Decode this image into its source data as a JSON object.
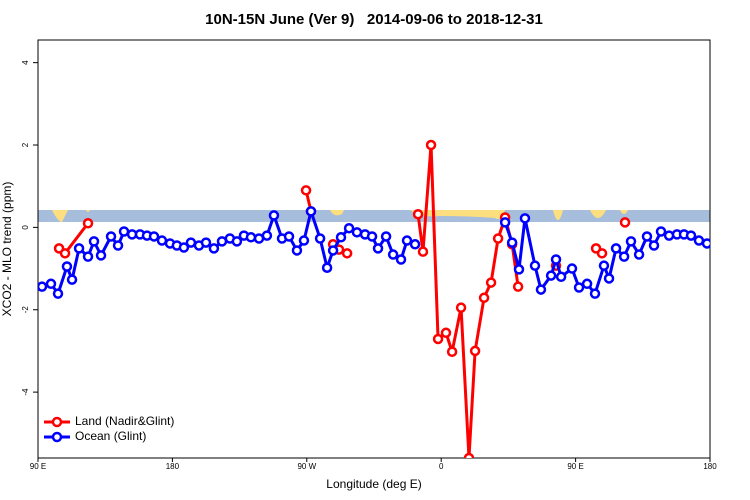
{
  "chart_data": {
    "type": "line",
    "title": "10N-15N June (Ver 9)   2014-09-06 to 2018-12-31",
    "x_label": "Longitude (deg E)",
    "y_label": "XCO2 - MLO trend (ppm)",
    "xlim": [
      90,
      540
    ],
    "xticks": [
      {
        "value": 90,
        "label": "90 E"
      },
      180,
      {
        "value": 270,
        "label": "90 W"
      },
      {
        "value": 360,
        "label": "0"
      },
      {
        "value": 450,
        "label": "90 E"
      },
      {
        "value": 540,
        "label": "180"
      }
    ],
    "ylim": [
      -5.6,
      4.55
    ],
    "yticks": [
      -4,
      -2,
      0,
      2,
      4
    ],
    "legend": "bottom-left",
    "series": [
      {
        "name": "Land (Nadir&Glint)",
        "color": "#ff0000",
        "x": [
          104.1,
          108.1,
          123.5,
          null,
          269.5,
          272.8,
          null,
          287.6,
          291.6,
          297,
          null,
          344.5,
          347.8,
          353.2,
          357.9,
          363.2,
          367.3,
          373.3,
          378.6,
          382.7,
          388.7,
          393.4,
          398.1,
          402.8,
          407.5,
          411.5,
          null,
          436.9,
          null,
          463.7,
          467.7,
          null,
          483.1
        ],
        "values": [
          -0.51,
          -0.63,
          0.1,
          null,
          0.9,
          0.39,
          null,
          -0.41,
          -0.54,
          -0.63,
          null,
          0.32,
          -0.59,
          2.0,
          -2.71,
          -2.56,
          -3.02,
          -1.95,
          -5.6,
          -3.0,
          -1.71,
          -1.34,
          -0.27,
          0.24,
          -0.41,
          -1.44,
          null,
          -0.93,
          null,
          -0.51,
          -0.63,
          null,
          0.12
        ]
      },
      {
        "name": "Ocean (Glint)",
        "color": "#0000ff",
        "x": [
          92.7,
          98.7,
          103.4,
          109.4,
          112.8,
          117.5,
          123.5,
          127.5,
          132.2,
          138.9,
          143.6,
          147.6,
          153,
          158.3,
          163,
          167.7,
          173,
          178.4,
          183,
          187.7,
          192.4,
          197.8,
          202.5,
          207.8,
          213.2,
          218.5,
          223.2,
          227.9,
          232.6,
          238,
          243.3,
          248,
          253.4,
          258.1,
          263.4,
          268.1,
          272.8,
          278.9,
          283.6,
          287.6,
          292.9,
          298.3,
          303.6,
          309,
          313.7,
          317.7,
          323.1,
          327.8,
          333.1,
          337.1,
          342.5,
          null,
          402.8,
          407.5,
          412.1,
          416.1,
          422.8,
          426.8,
          433.6,
          436.9,
          440.3,
          447.6,
          452.3,
          457.7,
          463,
          469,
          472.4,
          477.1,
          482.5,
          487.1,
          492.5,
          497.8,
          502.5,
          507.2,
          512.6,
          517.9,
          522.6,
          527.3,
          532.6,
          538
        ],
        "values": [
          -1.44,
          -1.37,
          -1.61,
          -0.95,
          -1.27,
          -0.51,
          -0.71,
          -0.34,
          -0.68,
          -0.22,
          -0.44,
          -0.1,
          -0.17,
          -0.17,
          -0.2,
          -0.22,
          -0.32,
          -0.39,
          -0.44,
          -0.49,
          -0.37,
          -0.44,
          -0.37,
          -0.51,
          -0.34,
          -0.27,
          -0.34,
          -0.2,
          -0.24,
          -0.27,
          -0.2,
          0.29,
          -0.27,
          -0.22,
          -0.56,
          -0.32,
          0.39,
          -0.27,
          -0.98,
          -0.56,
          -0.24,
          -0.02,
          -0.12,
          -0.17,
          -0.22,
          -0.51,
          -0.22,
          -0.66,
          -0.78,
          -0.32,
          -0.41,
          null,
          0.12,
          -0.37,
          -1.02,
          0.22,
          -0.93,
          -1.51,
          -1.17,
          -0.78,
          -1.2,
          -1.0,
          -1.46,
          -1.37,
          -1.61,
          -0.93,
          -1.24,
          -0.51,
          -0.71,
          -0.34,
          -0.66,
          -0.22,
          -0.44,
          -0.1,
          -0.2,
          -0.17,
          -0.17,
          -0.2,
          -0.32,
          -0.39
        ]
      }
    ]
  }
}
